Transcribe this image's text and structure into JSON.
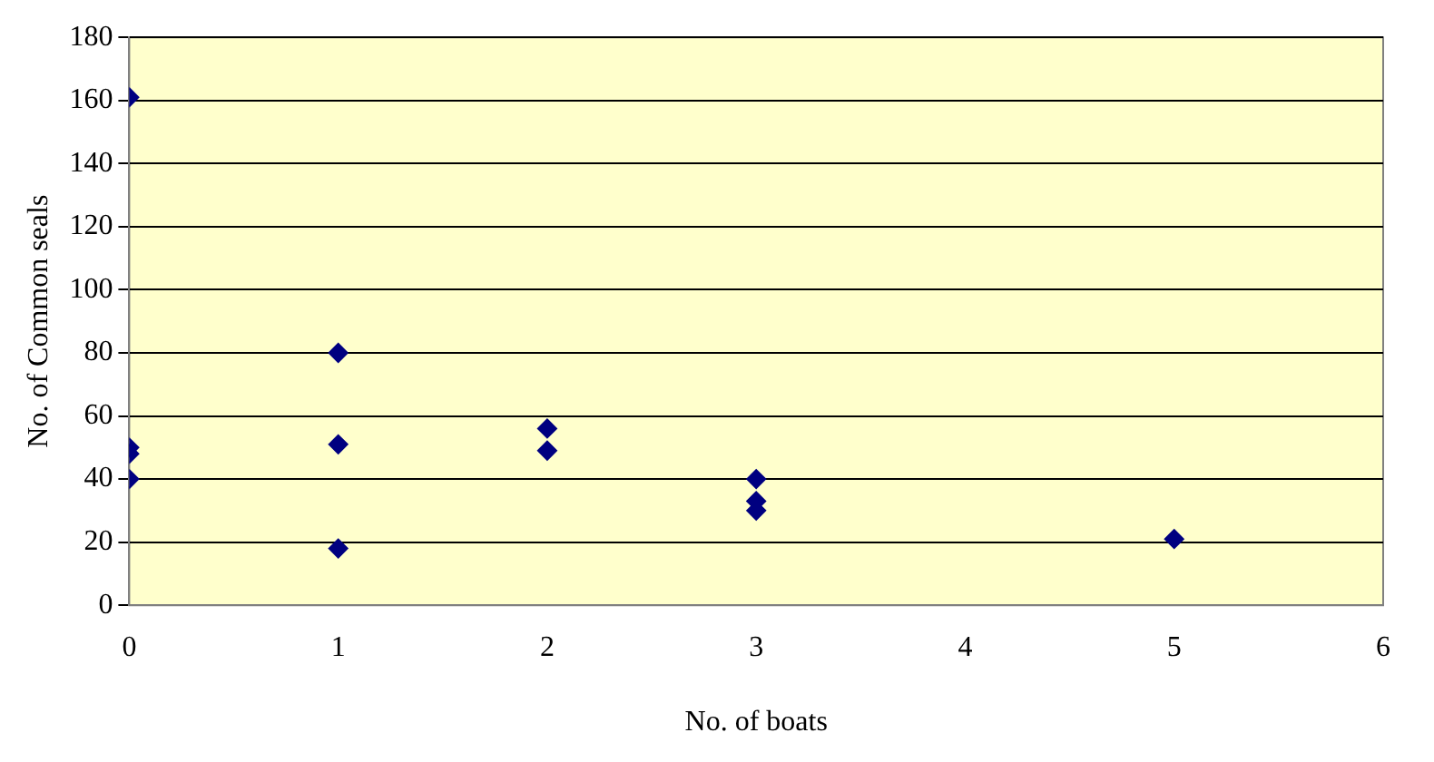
{
  "chart_data": {
    "type": "scatter",
    "xlabel": "No. of boats",
    "ylabel": "No. of Common seals",
    "x": [
      0,
      0,
      0,
      0,
      1,
      1,
      1,
      2,
      2,
      3,
      3,
      3,
      5
    ],
    "values": [
      161,
      50,
      48,
      40,
      80,
      51,
      18,
      56,
      49,
      40,
      33,
      30,
      21
    ],
    "color": "#000080",
    "marker": "diamond",
    "xlim": [
      0,
      6
    ],
    "xticks": [
      0,
      1,
      2,
      3,
      4,
      5,
      6
    ],
    "ylim": [
      0,
      180
    ],
    "yticks": [
      0,
      20,
      40,
      60,
      80,
      100,
      120,
      140,
      160,
      180
    ],
    "grid": "y",
    "legend": false
  }
}
